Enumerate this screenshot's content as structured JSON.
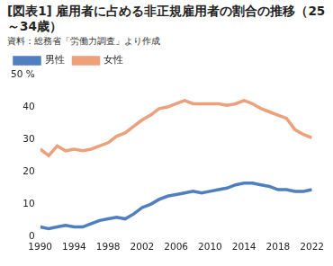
{
  "chart_data": {
    "type": "line",
    "title": "[図表1] 雇用者に占める非正規雇用者の割合の推移（25～34歳）",
    "subtitle": "資料：総務省「労働力調査」より作成",
    "x": [
      1990,
      1991,
      1992,
      1993,
      1994,
      1995,
      1996,
      1997,
      1998,
      1999,
      2000,
      2001,
      2002,
      2003,
      2004,
      2005,
      2006,
      2007,
      2008,
      2009,
      2010,
      2011,
      2012,
      2013,
      2014,
      2015,
      2016,
      2017,
      2018,
      2019,
      2020,
      2021,
      2022
    ],
    "series": [
      {
        "name": "男性",
        "color": "#4f7fc0",
        "marker": "none",
        "values": [
          3,
          2.5,
          3,
          3.5,
          3,
          3,
          4,
          5,
          5.5,
          6,
          5.5,
          7,
          9,
          10,
          11.5,
          12.5,
          13,
          13.5,
          14,
          13.5,
          14,
          14.5,
          15,
          16,
          16.5,
          16.5,
          16,
          15.5,
          14.5,
          14.5,
          14,
          14,
          14.5
        ]
      },
      {
        "name": "女性",
        "color": "#eda07c",
        "marker": "none",
        "values": [
          27,
          25,
          28,
          26.5,
          27,
          26.5,
          27,
          28,
          29,
          31,
          32,
          34,
          36,
          37.5,
          39.5,
          40,
          41,
          42,
          41,
          41,
          41,
          41,
          40.5,
          41,
          42,
          41,
          39.5,
          38.5,
          37.5,
          36.5,
          33,
          31.5,
          30.5
        ]
      }
    ],
    "xlim": [
      1990,
      2022
    ],
    "xticks": [
      1990,
      1994,
      1998,
      2002,
      2006,
      2010,
      2014,
      2018,
      2022
    ],
    "ylim": [
      0,
      50
    ],
    "yticks": [
      0,
      10,
      20,
      30,
      40,
      {
        "value": 50,
        "label": "50 %"
      }
    ],
    "grid": false,
    "legend": "top-left"
  }
}
